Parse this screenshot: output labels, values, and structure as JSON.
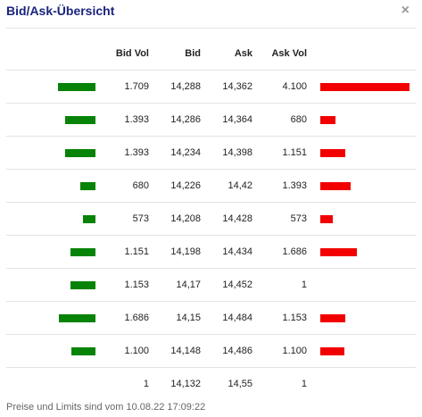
{
  "dialog": {
    "title": "Bid/Ask-Übersicht",
    "close_label": "×"
  },
  "columns": {
    "bid_vol": "Bid Vol",
    "bid": "Bid",
    "ask": "Ask",
    "ask_vol": "Ask Vol"
  },
  "colors": {
    "bid_bar": "#078307",
    "ask_bar": "#f20000",
    "title": "#1a237e"
  },
  "bar_max_volume": 4100,
  "rows": [
    {
      "bid_vol": "1.709",
      "bid": "14,288",
      "ask": "14,362",
      "ask_vol": "4.100",
      "bid_vol_num": 1709,
      "ask_vol_num": 4100
    },
    {
      "bid_vol": "1.393",
      "bid": "14,286",
      "ask": "14,364",
      "ask_vol": "680",
      "bid_vol_num": 1393,
      "ask_vol_num": 680
    },
    {
      "bid_vol": "1.393",
      "bid": "14,234",
      "ask": "14,398",
      "ask_vol": "1.151",
      "bid_vol_num": 1393,
      "ask_vol_num": 1151
    },
    {
      "bid_vol": "680",
      "bid": "14,226",
      "ask": "14,42",
      "ask_vol": "1.393",
      "bid_vol_num": 680,
      "ask_vol_num": 1393
    },
    {
      "bid_vol": "573",
      "bid": "14,208",
      "ask": "14,428",
      "ask_vol": "573",
      "bid_vol_num": 573,
      "ask_vol_num": 573
    },
    {
      "bid_vol": "1.151",
      "bid": "14,198",
      "ask": "14,434",
      "ask_vol": "1.686",
      "bid_vol_num": 1151,
      "ask_vol_num": 1686
    },
    {
      "bid_vol": "1.153",
      "bid": "14,17",
      "ask": "14,452",
      "ask_vol": "1",
      "bid_vol_num": 1153,
      "ask_vol_num": 1
    },
    {
      "bid_vol": "1.686",
      "bid": "14,15",
      "ask": "14,484",
      "ask_vol": "1.153",
      "bid_vol_num": 1686,
      "ask_vol_num": 1153
    },
    {
      "bid_vol": "1.100",
      "bid": "14,148",
      "ask": "14,486",
      "ask_vol": "1.100",
      "bid_vol_num": 1100,
      "ask_vol_num": 1100
    },
    {
      "bid_vol": "1",
      "bid": "14,132",
      "ask": "14,55",
      "ask_vol": "1",
      "bid_vol_num": 1,
      "ask_vol_num": 1
    }
  ],
  "footer": "Preise und Limits sind vom 10.08.22 17:09:22"
}
